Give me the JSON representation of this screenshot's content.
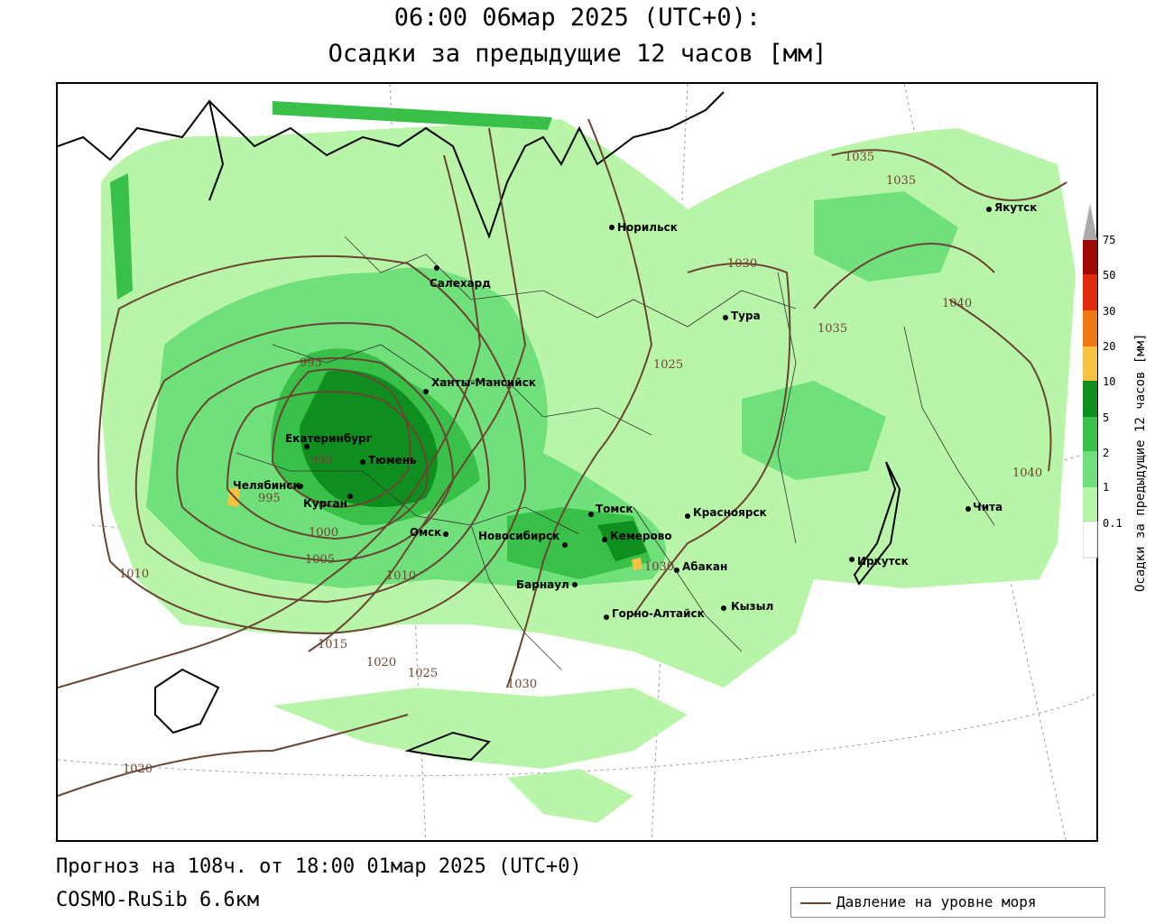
{
  "title": {
    "line1": "06:00 06мар 2025 (UTC+0):",
    "line2": "Осадки за предыдущие 12 часов [мм]"
  },
  "footer": {
    "forecast": "Прогноз на 108ч. от 18:00 01мар 2025 (UTC+0)",
    "model": "COSMO-RuSib 6.6км"
  },
  "legend": {
    "line_label": "Давление на уровне моря",
    "line_color": "#6b4534"
  },
  "colorbar": {
    "label": "Осадки за предыдущие 12 часов [мм]",
    "ticks": [
      "0.1",
      "1",
      "2",
      "5",
      "10",
      "20",
      "30",
      "50",
      "75"
    ],
    "colors": [
      "#ffffff",
      "#b8f5a8",
      "#6fe07a",
      "#38c048",
      "#0e8e1e",
      "#f5c242",
      "#f07a18",
      "#e02a10",
      "#a00808",
      "#aaaaaa"
    ]
  },
  "cities": [
    {
      "name": "Норильск"
    },
    {
      "name": "Якутск"
    },
    {
      "name": "Салехард"
    },
    {
      "name": "Тура"
    },
    {
      "name": "Ханты-Мансийск"
    },
    {
      "name": "Екатеринбург"
    },
    {
      "name": "Тюмень"
    },
    {
      "name": "Челябинск"
    },
    {
      "name": "Курган"
    },
    {
      "name": "Омск"
    },
    {
      "name": "Новосибирск"
    },
    {
      "name": "Томск"
    },
    {
      "name": "Кемерово"
    },
    {
      "name": "Красноярск"
    },
    {
      "name": "Барнаул"
    },
    {
      "name": "Абакан"
    },
    {
      "name": "Иркутск"
    },
    {
      "name": "Чита"
    },
    {
      "name": "Кызыл"
    },
    {
      "name": "Горно-Алтайск"
    }
  ],
  "isobars": [
    "1035",
    "1035",
    "1030",
    "1040",
    "1035",
    "1025",
    "995",
    "990",
    "995",
    "1000",
    "1005",
    "1010",
    "1010",
    "1015",
    "1020",
    "1025",
    "1030",
    "1030",
    "1040",
    "1020"
  ]
}
